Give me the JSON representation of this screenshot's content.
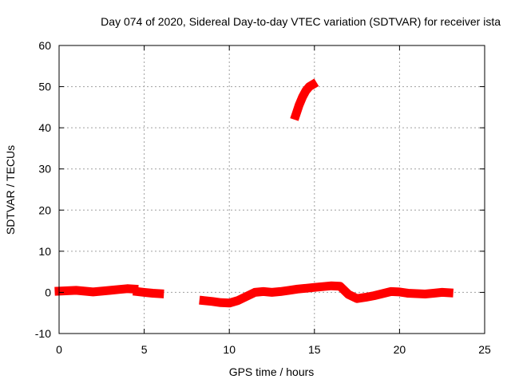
{
  "chart_data": {
    "type": "scatter",
    "title": "Day 074 of 2020, Sidereal Day-to-day VTEC variation (SDTVAR) for receiver ista",
    "xlabel": "GPS time / hours",
    "ylabel": "SDTVAR / TECUs",
    "xlim": [
      0,
      25
    ],
    "ylim": [
      -10,
      60
    ],
    "xticks": [
      0,
      5,
      10,
      15,
      20,
      25
    ],
    "yticks": [
      -10,
      0,
      10,
      20,
      30,
      40,
      50,
      60
    ],
    "xtick_labels": [
      "0",
      "5",
      "10",
      "15",
      "20",
      "25"
    ],
    "ytick_labels": [
      "-10",
      "0",
      "10",
      "20",
      "30",
      "40",
      "50",
      "60"
    ],
    "grid": true,
    "series": [
      {
        "name": "SDTVAR",
        "color": "#ff0000",
        "segments": [
          [
            [
              0.0,
              0.3
            ],
            [
              0.5,
              0.4
            ],
            [
              1.0,
              0.5
            ],
            [
              1.5,
              0.3
            ],
            [
              2.0,
              0.1
            ],
            [
              2.5,
              0.3
            ],
            [
              3.0,
              0.5
            ],
            [
              3.5,
              0.7
            ],
            [
              4.0,
              0.9
            ],
            [
              4.4,
              0.8
            ]
          ],
          [
            [
              4.6,
              0.2
            ],
            [
              5.0,
              0.0
            ],
            [
              5.5,
              -0.2
            ],
            [
              5.9,
              -0.3
            ]
          ],
          [
            [
              8.5,
              -2.0
            ],
            [
              9.0,
              -2.2
            ],
            [
              9.5,
              -2.5
            ],
            [
              10.0,
              -2.6
            ],
            [
              10.5,
              -2.0
            ],
            [
              11.0,
              -1.0
            ],
            [
              11.5,
              0.0
            ],
            [
              12.0,
              0.2
            ],
            [
              12.5,
              0.0
            ],
            [
              13.0,
              0.2
            ],
            [
              13.5,
              0.5
            ],
            [
              14.0,
              0.8
            ],
            [
              14.5,
              1.0
            ],
            [
              15.0,
              1.2
            ],
            [
              15.5,
              1.4
            ],
            [
              16.0,
              1.6
            ],
            [
              16.5,
              1.5
            ],
            [
              17.0,
              -0.5
            ],
            [
              17.5,
              -1.5
            ],
            [
              18.0,
              -1.2
            ],
            [
              18.5,
              -0.8
            ],
            [
              19.0,
              -0.3
            ],
            [
              19.5,
              0.2
            ],
            [
              20.0,
              0.1
            ],
            [
              20.5,
              -0.2
            ],
            [
              21.0,
              -0.3
            ],
            [
              21.5,
              -0.4
            ],
            [
              22.0,
              -0.2
            ],
            [
              22.5,
              0.0
            ],
            [
              22.9,
              -0.1
            ]
          ],
          [
            [
              13.9,
              43.0
            ],
            [
              14.1,
              45.5
            ],
            [
              14.3,
              47.5
            ],
            [
              14.5,
              49.0
            ],
            [
              14.7,
              50.0
            ],
            [
              14.9,
              50.5
            ]
          ]
        ]
      }
    ]
  }
}
